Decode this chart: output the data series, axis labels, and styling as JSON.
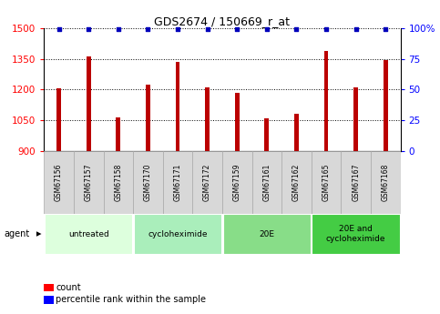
{
  "title": "GDS2674 / 150669_r_at",
  "samples": [
    "GSM67156",
    "GSM67157",
    "GSM67158",
    "GSM67170",
    "GSM67171",
    "GSM67172",
    "GSM67159",
    "GSM67161",
    "GSM67162",
    "GSM67165",
    "GSM67167",
    "GSM67168"
  ],
  "counts": [
    1205,
    1360,
    1065,
    1225,
    1335,
    1210,
    1185,
    1060,
    1080,
    1390,
    1210,
    1345
  ],
  "percentiles": [
    99,
    99,
    99,
    99,
    99,
    99,
    99,
    99,
    99,
    99,
    99,
    99
  ],
  "bar_color": "#bb0000",
  "dot_color": "#0000bb",
  "ylim_left": [
    900,
    1500
  ],
  "ylim_right": [
    0,
    100
  ],
  "yticks_left": [
    900,
    1050,
    1200,
    1350,
    1500
  ],
  "yticks_right": [
    0,
    25,
    50,
    75,
    100
  ],
  "groups": [
    {
      "label": "untreated",
      "start": 0,
      "end": 3,
      "color": "#ddffdd"
    },
    {
      "label": "cycloheximide",
      "start": 3,
      "end": 6,
      "color": "#aaeebb"
    },
    {
      "label": "20E",
      "start": 6,
      "end": 9,
      "color": "#88dd88"
    },
    {
      "label": "20E and\ncycloheximide",
      "start": 9,
      "end": 12,
      "color": "#44cc44"
    }
  ],
  "background_color": "#ffffff",
  "plot_bg_color": "#ffffff",
  "grid_color": "#000000",
  "agent_label": "agent",
  "legend_count_label": "count",
  "legend_pct_label": "percentile rank within the sample",
  "bar_width": 0.15,
  "sample_box_color": "#d8d8d8",
  "sample_box_edge_color": "#aaaaaa"
}
